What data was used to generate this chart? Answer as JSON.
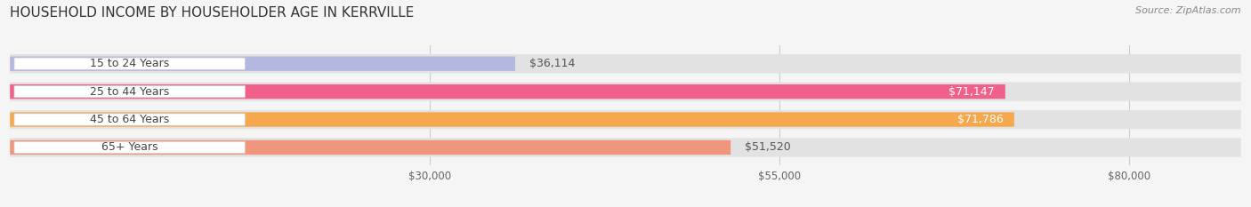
{
  "title": "HOUSEHOLD INCOME BY HOUSEHOLDER AGE IN KERRVILLE",
  "source": "Source: ZipAtlas.com",
  "categories": [
    "15 to 24 Years",
    "25 to 44 Years",
    "45 to 64 Years",
    "65+ Years"
  ],
  "values": [
    36114,
    71147,
    71786,
    51520
  ],
  "bar_colors": [
    "#b3b8e0",
    "#f0608a",
    "#f5a84e",
    "#f0967d"
  ],
  "value_labels": [
    "$36,114",
    "$71,147",
    "$71,786",
    "$51,520"
  ],
  "label_inside": [
    false,
    true,
    true,
    false
  ],
  "label_outside_color": "#555555",
  "x_ticks": [
    30000,
    55000,
    80000
  ],
  "x_tick_labels": [
    "$30,000",
    "$55,000",
    "$80,000"
  ],
  "data_max": 88000,
  "xlim_left": 0,
  "xlim_right": 88000,
  "background_color": "#f5f5f5",
  "bar_bg_color": "#e2e2e2",
  "title_fontsize": 11,
  "source_fontsize": 8,
  "tick_fontsize": 8.5,
  "label_fontsize": 9,
  "value_fontsize": 9
}
